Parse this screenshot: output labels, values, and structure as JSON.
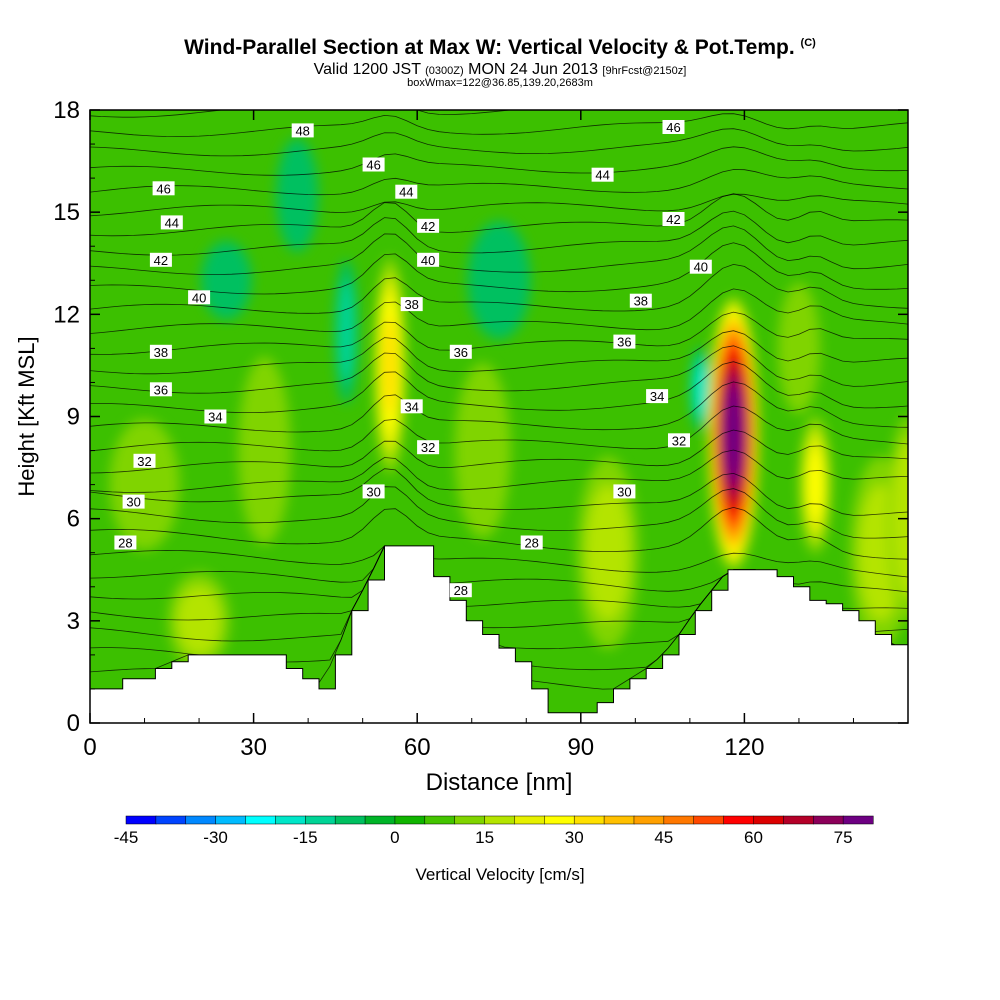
{
  "header": {
    "title": "Wind-Parallel Section at Max W: Vertical Velocity & Pot.Temp.",
    "copyright": "(C)",
    "valid_prefix": "Valid 1200 JST",
    "valid_zulu": "(0300Z)",
    "valid_date": "MON 24 Jun 2013",
    "forecast": "[9hrFcst@2150z]",
    "box_info": "boxWmax=122@36.85,139.20,2683m"
  },
  "chart_data": {
    "type": "heatmap",
    "xlabel": "Distance [nm]",
    "ylabel": "Height [Kft MSL]",
    "xlim": [
      0,
      150
    ],
    "ylim": [
      0,
      18
    ],
    "xticks": [
      0,
      30,
      60,
      90,
      120
    ],
    "yticks": [
      0,
      3,
      6,
      9,
      12,
      15,
      18
    ],
    "colorbar": {
      "label": "Vertical Velocity [cm/s]",
      "ticks": [
        -45,
        -30,
        -15,
        0,
        15,
        30,
        45,
        60,
        75
      ],
      "min": -45,
      "max": 80,
      "step": 5,
      "colors": [
        "#0000ff",
        "#0044ff",
        "#0088ff",
        "#00bbff",
        "#00ffff",
        "#00e6c8",
        "#00d496",
        "#00c060",
        "#00b428",
        "#10b400",
        "#44c400",
        "#80d400",
        "#b4e400",
        "#e6f000",
        "#ffff00",
        "#ffe000",
        "#ffc000",
        "#ffa000",
        "#ff7800",
        "#ff4800",
        "#ff0000",
        "#dc0000",
        "#b40028",
        "#8c005a",
        "#6e0082"
      ]
    },
    "terrain_profile": {
      "x": [
        0,
        3,
        6,
        9,
        12,
        15,
        18,
        21,
        24,
        27,
        30,
        33,
        36,
        39,
        42,
        45,
        48,
        51,
        54,
        57,
        60,
        63,
        66,
        69,
        72,
        75,
        78,
        81,
        84,
        87,
        90,
        93,
        96,
        99,
        102,
        105,
        108,
        111,
        114,
        117,
        120,
        123,
        126,
        129,
        132,
        135,
        138,
        141,
        144,
        147,
        150
      ],
      "y": [
        1.0,
        1.0,
        1.3,
        1.3,
        1.6,
        1.8,
        2.0,
        2.0,
        2.0,
        2.0,
        2.0,
        2.0,
        1.6,
        1.3,
        1.0,
        2.0,
        3.3,
        4.2,
        5.2,
        5.2,
        5.2,
        4.3,
        3.6,
        3.0,
        2.6,
        2.2,
        1.8,
        1.0,
        0.3,
        0.3,
        0.3,
        0.6,
        1.0,
        1.3,
        1.6,
        2.0,
        2.6,
        3.3,
        3.9,
        4.5,
        4.5,
        4.5,
        4.3,
        4.0,
        3.6,
        3.5,
        3.3,
        3.0,
        2.6,
        2.3,
        2.2
      ]
    },
    "updrafts": [
      {
        "x": 55,
        "y": 10.5,
        "w_max": 30
      },
      {
        "x": 118,
        "y": 8.5,
        "w_max": 122
      },
      {
        "x": 133,
        "y": 7.0,
        "w_max": 25
      },
      {
        "x": 150,
        "y": 6.0,
        "w_max": 18
      }
    ],
    "downdrafts": [
      {
        "x": 47,
        "y": 11.5,
        "w_min": -15
      },
      {
        "x": 112,
        "y": 9.8,
        "w_min": -20
      },
      {
        "x": 38,
        "y": 15.5,
        "w_min": -12
      },
      {
        "x": 82,
        "y": 2.2,
        "w_min": -8
      }
    ],
    "theta_labels": [
      {
        "text": "48",
        "x": 39,
        "y": 17.4
      },
      {
        "text": "46",
        "x": 13.5,
        "y": 15.7
      },
      {
        "text": "46",
        "x": 52,
        "y": 16.4
      },
      {
        "text": "46",
        "x": 107,
        "y": 17.5
      },
      {
        "text": "44",
        "x": 15,
        "y": 14.7
      },
      {
        "text": "44",
        "x": 58,
        "y": 15.6
      },
      {
        "text": "44",
        "x": 94,
        "y": 16.1
      },
      {
        "text": "42",
        "x": 13,
        "y": 13.6
      },
      {
        "text": "42",
        "x": 62,
        "y": 14.6
      },
      {
        "text": "42",
        "x": 107,
        "y": 14.8
      },
      {
        "text": "40",
        "x": 20,
        "y": 12.5
      },
      {
        "text": "40",
        "x": 62,
        "y": 13.6
      },
      {
        "text": "40",
        "x": 112,
        "y": 13.4
      },
      {
        "text": "38",
        "x": 13,
        "y": 10.9
      },
      {
        "text": "38",
        "x": 59,
        "y": 12.3
      },
      {
        "text": "38",
        "x": 101,
        "y": 12.4
      },
      {
        "text": "36",
        "x": 13,
        "y": 9.8
      },
      {
        "text": "36",
        "x": 68,
        "y": 10.9
      },
      {
        "text": "36",
        "x": 98,
        "y": 11.2
      },
      {
        "text": "34",
        "x": 23,
        "y": 9.0
      },
      {
        "text": "34",
        "x": 59,
        "y": 9.3
      },
      {
        "text": "34",
        "x": 104,
        "y": 9.6
      },
      {
        "text": "32",
        "x": 10,
        "y": 7.7
      },
      {
        "text": "32",
        "x": 62,
        "y": 8.1
      },
      {
        "text": "32",
        "x": 108,
        "y": 8.3
      },
      {
        "text": "30",
        "x": 8,
        "y": 6.5
      },
      {
        "text": "30",
        "x": 52,
        "y": 6.8
      },
      {
        "text": "30",
        "x": 98,
        "y": 6.8
      },
      {
        "text": "28",
        "x": 6.5,
        "y": 5.3
      },
      {
        "text": "28",
        "x": 81,
        "y": 5.3
      },
      {
        "text": "28",
        "x": 68,
        "y": 3.9
      }
    ]
  }
}
